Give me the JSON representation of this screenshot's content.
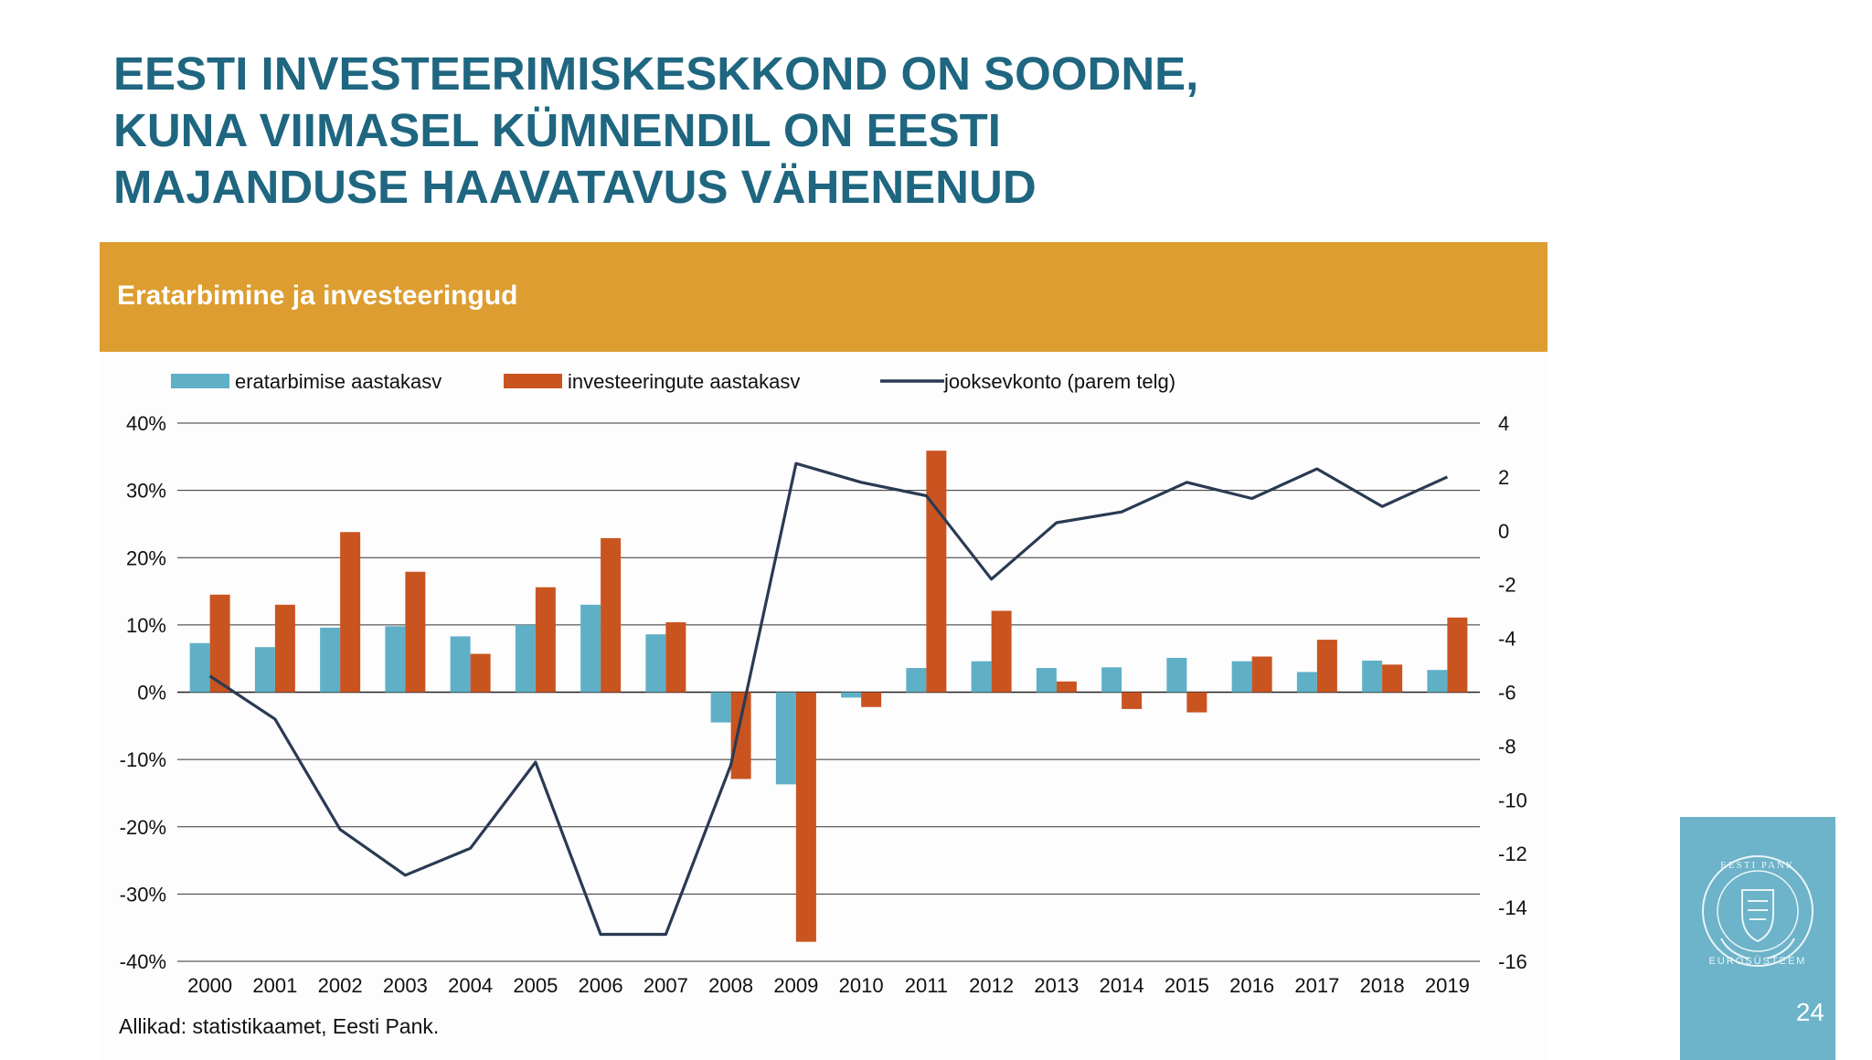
{
  "slide": {
    "title_lines": [
      "EESTI INVESTEERIMISKESKKOND ON SOODNE,",
      "KUNA VIIMASEL KÜMNENDIL ON EESTI",
      "MAJANDUSE HAAVATAVUS VÄHENENUD"
    ],
    "source": "Allikad: statistikaamet, Eesti Pank.",
    "page_number": "24",
    "logo_name": "EESTI PANK",
    "logo_subtitle": "EUROSÜSTEEM"
  },
  "colors": {
    "title": "#1f6680",
    "header_bar": "#dd9d30",
    "series_consumption": "#5fb0c7",
    "series_investment": "#c95420",
    "series_current_account": "#2a3a52",
    "logo_box": "#6db3c9"
  },
  "chart_data": {
    "type": "bar",
    "title": "Eratarbimine ja investeeringud",
    "categories": [
      "2000",
      "2001",
      "2002",
      "2003",
      "2004",
      "2005",
      "2006",
      "2007",
      "2008",
      "2009",
      "2010",
      "2011",
      "2012",
      "2013",
      "2014",
      "2015",
      "2016",
      "2017",
      "2018",
      "2019"
    ],
    "series": [
      {
        "name": "eratarbimise aastakasv",
        "type": "bar",
        "axis": "left",
        "values": [
          7.3,
          6.7,
          9.6,
          9.8,
          8.3,
          10.0,
          13.0,
          8.6,
          -4.5,
          -13.7,
          -0.8,
          3.6,
          4.6,
          3.6,
          3.7,
          5.1,
          4.6,
          3.0,
          4.7,
          3.3
        ]
      },
      {
        "name": "investeeringute aastakasv",
        "type": "bar",
        "axis": "left",
        "values": [
          14.5,
          13.0,
          23.8,
          17.9,
          5.7,
          15.6,
          22.9,
          10.4,
          -12.9,
          -37.1,
          -2.2,
          35.9,
          12.1,
          1.6,
          -2.5,
          -3.0,
          5.3,
          7.8,
          4.1,
          11.1
        ]
      },
      {
        "name": "jooksevkonto (parem telg)",
        "type": "line",
        "axis": "right",
        "values": [
          -5.4,
          -7.0,
          -11.1,
          -12.8,
          -11.8,
          -8.6,
          -15.0,
          -15.0,
          -8.7,
          2.5,
          1.8,
          1.3,
          -1.8,
          0.3,
          0.7,
          1.8,
          1.2,
          2.3,
          0.9,
          2.0
        ]
      }
    ],
    "left_axis": {
      "ylim": [
        -40,
        40
      ],
      "ticks": [
        "-40%",
        "-30%",
        "-20%",
        "-10%",
        "0%",
        "10%",
        "20%",
        "30%",
        "40%"
      ]
    },
    "right_axis": {
      "ylim": [
        -16,
        4
      ],
      "ticks": [
        "-16",
        "-14",
        "-12",
        "-10",
        "-8",
        "-6",
        "-4",
        "-2",
        "0",
        "2",
        "4"
      ]
    },
    "grid": true,
    "legend_position": "top"
  }
}
